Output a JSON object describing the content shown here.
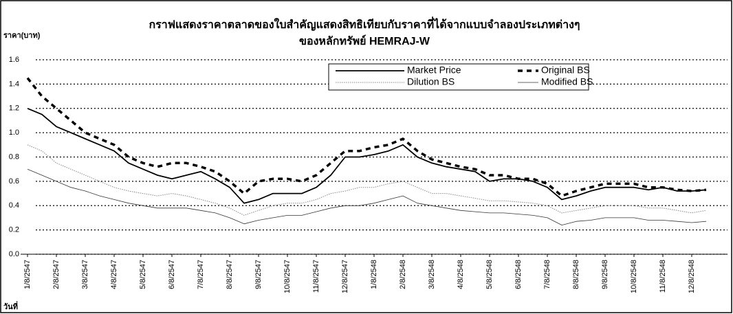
{
  "chart_data": {
    "type": "line",
    "title": "กราฟแสดงราคาตลาดของใบสำคัญแสดงสิทธิเทียบกับราคาที่ได้จากแบบจำลองประเภทต่างๆ",
    "subtitle": "ของหลักทรัพย์ HEMRAJ-W",
    "y_label": "ราคา(บาท)",
    "x_label": "วันที่",
    "categories": [
      "1/8/2547",
      null,
      "2/8/2547",
      null,
      "3/8/2547",
      null,
      "4/8/2547",
      null,
      "5/8/2547",
      null,
      "6/8/2547",
      null,
      "7/8/2547",
      null,
      "8/8/2547",
      null,
      "9/8/2547",
      null,
      "10/8/2547",
      null,
      "11/8/2547",
      null,
      "12/8/2547",
      null,
      "1/8/2548",
      null,
      "2/8/2548",
      null,
      "3/8/2548",
      null,
      "4/8/2548",
      null,
      "5/8/2548",
      null,
      "6/8/2548",
      null,
      "7/8/2548",
      null,
      "8/8/2548",
      null,
      "9/8/2548",
      null,
      "10/8/2548",
      null,
      "11/8/2548",
      null,
      "12/8/2548",
      null
    ],
    "series": [
      {
        "name": "Market Price",
        "color": "#000000",
        "style": "solid",
        "width": 1.8,
        "values": [
          1.2,
          1.15,
          1.05,
          1.0,
          0.95,
          0.9,
          0.85,
          0.75,
          0.7,
          0.65,
          0.62,
          0.65,
          0.68,
          0.62,
          0.55,
          0.42,
          0.45,
          0.5,
          0.5,
          0.5,
          0.55,
          0.65,
          0.8,
          0.8,
          0.82,
          0.85,
          0.9,
          0.8,
          0.75,
          0.72,
          0.7,
          0.68,
          0.6,
          0.62,
          0.62,
          0.6,
          0.55,
          0.45,
          0.48,
          0.52,
          0.55,
          0.55,
          0.55,
          0.53,
          0.55,
          0.52,
          0.52,
          0.53
        ]
      },
      {
        "name": "Original BS",
        "color": "#000000",
        "style": "dashed",
        "width": 3.5,
        "values": [
          1.45,
          1.3,
          1.2,
          1.1,
          1.0,
          0.95,
          0.9,
          0.8,
          0.75,
          0.72,
          0.75,
          0.75,
          0.72,
          0.68,
          0.6,
          0.5,
          0.6,
          0.62,
          0.62,
          0.6,
          0.65,
          0.75,
          0.85,
          0.85,
          0.88,
          0.9,
          0.95,
          0.85,
          0.78,
          0.75,
          0.72,
          0.7,
          0.65,
          0.65,
          0.62,
          0.62,
          0.58,
          0.48,
          0.52,
          0.55,
          0.58,
          0.58,
          0.58,
          0.55,
          0.55,
          0.53,
          0.52,
          0.53
        ]
      },
      {
        "name": "Dilution BS",
        "color": "#888888",
        "style": "dotted",
        "width": 1,
        "values": [
          0.9,
          0.85,
          0.75,
          0.7,
          0.65,
          0.6,
          0.55,
          0.52,
          0.5,
          0.48,
          0.5,
          0.48,
          0.45,
          0.42,
          0.38,
          0.32,
          0.36,
          0.4,
          0.42,
          0.42,
          0.45,
          0.5,
          0.52,
          0.55,
          0.55,
          0.58,
          0.6,
          0.55,
          0.5,
          0.5,
          0.48,
          0.46,
          0.44,
          0.44,
          0.43,
          0.42,
          0.4,
          0.34,
          0.36,
          0.38,
          0.4,
          0.4,
          0.4,
          0.38,
          0.38,
          0.36,
          0.34,
          0.36
        ]
      },
      {
        "name": "Modified BS",
        "color": "#333333",
        "style": "solid",
        "width": 0.8,
        "values": [
          0.7,
          0.65,
          0.6,
          0.55,
          0.52,
          0.48,
          0.45,
          0.42,
          0.4,
          0.38,
          0.38,
          0.38,
          0.36,
          0.34,
          0.3,
          0.25,
          0.28,
          0.3,
          0.32,
          0.32,
          0.35,
          0.38,
          0.4,
          0.4,
          0.42,
          0.45,
          0.48,
          0.42,
          0.4,
          0.38,
          0.36,
          0.35,
          0.34,
          0.34,
          0.33,
          0.32,
          0.3,
          0.24,
          0.27,
          0.28,
          0.3,
          0.3,
          0.3,
          0.28,
          0.28,
          0.27,
          0.26,
          0.27
        ]
      }
    ],
    "ylim": [
      0,
      1.6
    ],
    "yticks": [
      {
        "value": 0,
        "label": "0.0"
      },
      0.2,
      0.4,
      0.6,
      0.8,
      {
        "value": 1,
        "label": "1.0"
      },
      1.2,
      1.4,
      1.6
    ],
    "grid": true,
    "legend": "upper right"
  }
}
